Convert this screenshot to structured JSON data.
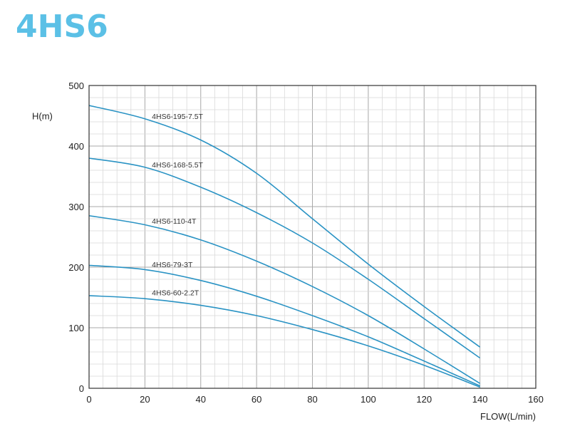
{
  "title": "4HS6",
  "chart_data": {
    "type": "line",
    "xlabel": "FLOW(L/min)",
    "ylabel": "H(m)",
    "xlim": [
      0,
      160
    ],
    "ylim": [
      0,
      500
    ],
    "xticks": [
      0,
      20,
      40,
      60,
      80,
      100,
      120,
      140,
      160
    ],
    "yticks": [
      0,
      100,
      200,
      300,
      400,
      500
    ],
    "grid": true,
    "line_color": "#2a93c4",
    "series": [
      {
        "name": "4HS6-195-7.5T",
        "x": [
          0,
          20,
          40,
          60,
          80,
          100,
          120,
          140
        ],
        "y": [
          467,
          445,
          410,
          355,
          280,
          205,
          135,
          68
        ]
      },
      {
        "name": "4HS6-168-5.5T",
        "x": [
          0,
          20,
          40,
          60,
          80,
          100,
          120,
          140
        ],
        "y": [
          380,
          365,
          332,
          290,
          240,
          180,
          115,
          50
        ]
      },
      {
        "name": "4HS6-110-4T",
        "x": [
          0,
          20,
          40,
          60,
          80,
          100,
          120,
          140
        ],
        "y": [
          285,
          270,
          245,
          210,
          168,
          120,
          65,
          8
        ]
      },
      {
        "name": "4HS6-79-3T",
        "x": [
          0,
          20,
          40,
          60,
          80,
          100,
          120,
          140
        ],
        "y": [
          203,
          196,
          178,
          152,
          120,
          85,
          45,
          4
        ]
      },
      {
        "name": "4HS6-60-2.2T",
        "x": [
          0,
          20,
          40,
          60,
          80,
          100,
          120,
          140
        ],
        "y": [
          153,
          148,
          137,
          120,
          97,
          70,
          38,
          2
        ]
      }
    ]
  }
}
